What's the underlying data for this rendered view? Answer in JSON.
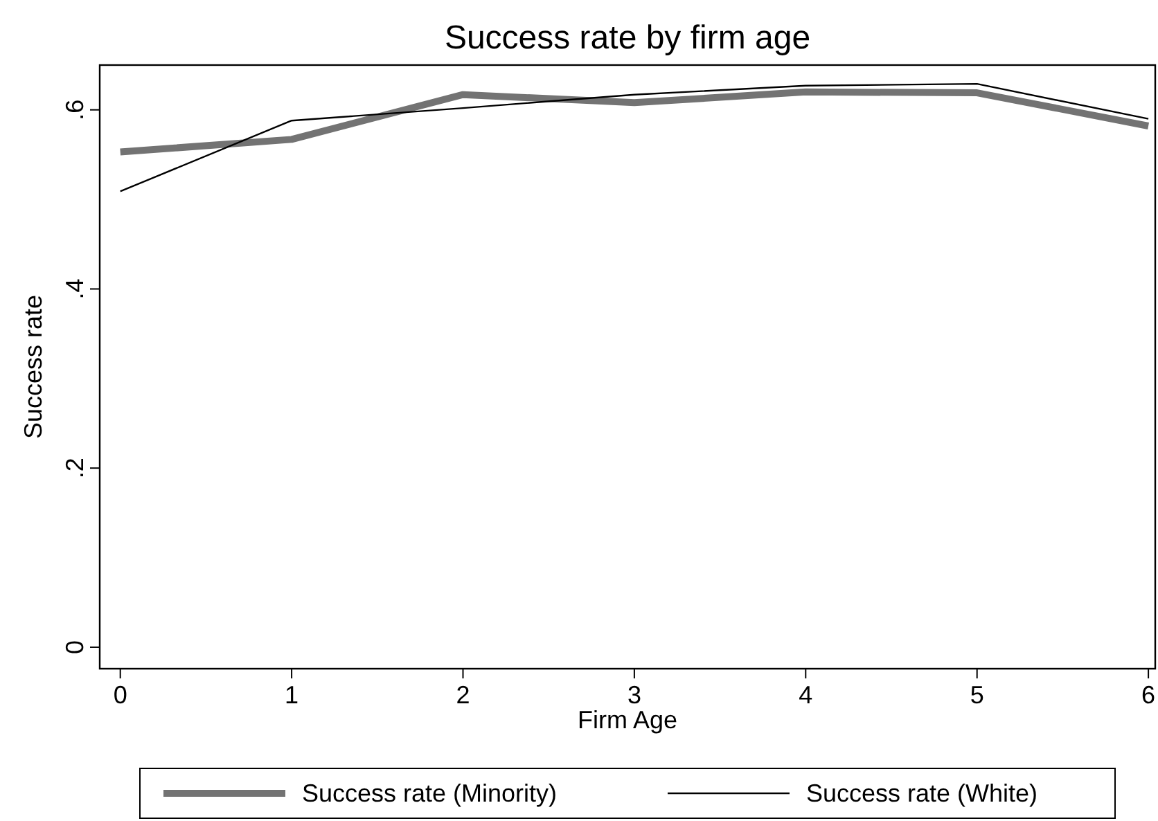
{
  "chart_data": {
    "type": "line",
    "title": "Success rate by firm age",
    "xlabel": "Firm Age",
    "ylabel": "Success rate",
    "x": [
      0,
      1,
      2,
      3,
      4,
      5,
      6
    ],
    "xlim": [
      -0.12,
      6.04
    ],
    "xticks": [
      0,
      1,
      2,
      3,
      4,
      5,
      6
    ],
    "ylim": [
      -0.024,
      0.65
    ],
    "yticks": [
      {
        "value": 0,
        "label": "0"
      },
      {
        "value": 0.2,
        "label": ".2"
      },
      {
        "value": 0.4,
        "label": ".4"
      },
      {
        "value": 0.6,
        "label": ".6"
      }
    ],
    "legend": "bottom",
    "grid": false,
    "marker": "none",
    "series": [
      {
        "name": "Success rate (Minority)",
        "color": "#737373",
        "values": [
          0.553,
          0.567,
          0.617,
          0.608,
          0.62,
          0.619,
          0.582
        ]
      },
      {
        "name": "Success rate (White)",
        "color": "#000000",
        "values": [
          0.509,
          0.588,
          0.602,
          0.617,
          0.627,
          0.629,
          0.59
        ]
      }
    ]
  }
}
